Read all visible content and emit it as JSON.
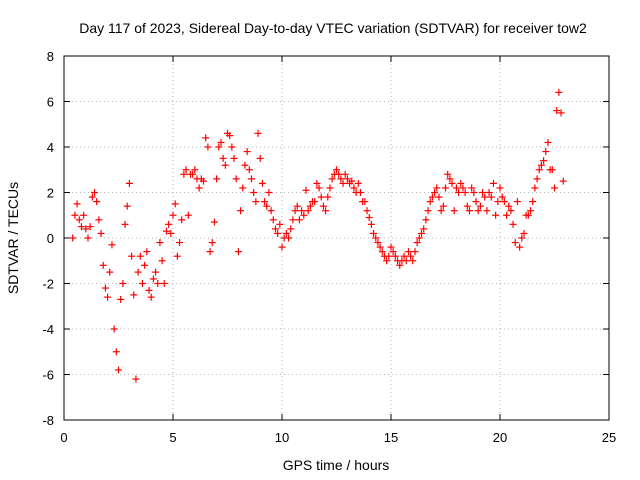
{
  "chart_data": {
    "type": "scatter",
    "title": "Day 117 of 2023, Sidereal Day-to-day VTEC variation (SDTVAR) for receiver tow2",
    "xlabel": "GPS time / hours",
    "ylabel": "SDTVAR / TECUs",
    "xlim": [
      0,
      25
    ],
    "ylim": [
      -8,
      8
    ],
    "xticks": [
      0,
      5,
      10,
      15,
      20,
      25
    ],
    "yticks": [
      -8,
      -6,
      -4,
      -2,
      0,
      2,
      4,
      6,
      8
    ],
    "grid": true,
    "marker": "plus",
    "color": "#ff0000",
    "series": [
      {
        "name": "SDTVAR tow2",
        "points": [
          [
            0.4,
            0.0
          ],
          [
            0.5,
            1.0
          ],
          [
            0.6,
            1.5
          ],
          [
            0.7,
            0.8
          ],
          [
            0.8,
            0.5
          ],
          [
            0.9,
            1.0
          ],
          [
            1.0,
            0.4
          ],
          [
            1.1,
            0.0
          ],
          [
            1.2,
            0.5
          ],
          [
            1.3,
            1.8
          ],
          [
            1.4,
            2.0
          ],
          [
            1.5,
            1.6
          ],
          [
            1.6,
            0.8
          ],
          [
            1.7,
            0.2
          ],
          [
            1.8,
            -1.2
          ],
          [
            1.9,
            -2.2
          ],
          [
            2.0,
            -2.6
          ],
          [
            2.1,
            -1.5
          ],
          [
            2.2,
            -0.3
          ],
          [
            2.3,
            -4.0
          ],
          [
            2.4,
            -5.0
          ],
          [
            2.5,
            -5.8
          ],
          [
            2.6,
            -2.7
          ],
          [
            2.7,
            -2.0
          ],
          [
            2.8,
            0.6
          ],
          [
            2.9,
            1.4
          ],
          [
            3.0,
            2.4
          ],
          [
            3.1,
            -0.8
          ],
          [
            3.2,
            -2.5
          ],
          [
            3.3,
            -6.2
          ],
          [
            3.4,
            -1.5
          ],
          [
            3.5,
            -0.8
          ],
          [
            3.6,
            -2.0
          ],
          [
            3.7,
            -1.2
          ],
          [
            3.8,
            -0.6
          ],
          [
            3.9,
            -2.3
          ],
          [
            4.0,
            -2.6
          ],
          [
            4.1,
            -1.8
          ],
          [
            4.2,
            -1.5
          ],
          [
            4.3,
            -2.0
          ],
          [
            4.4,
            -0.2
          ],
          [
            4.5,
            -1.0
          ],
          [
            4.6,
            -2.0
          ],
          [
            4.7,
            0.3
          ],
          [
            4.8,
            0.6
          ],
          [
            4.9,
            0.2
          ],
          [
            5.0,
            1.0
          ],
          [
            5.1,
            1.5
          ],
          [
            5.2,
            -0.8
          ],
          [
            5.3,
            -0.2
          ],
          [
            5.4,
            0.8
          ],
          [
            5.5,
            2.8
          ],
          [
            5.6,
            3.0
          ],
          [
            5.7,
            1.0
          ],
          [
            5.8,
            2.8
          ],
          [
            5.9,
            2.8
          ],
          [
            6.0,
            3.0
          ],
          [
            6.1,
            2.6
          ],
          [
            6.2,
            2.2
          ],
          [
            6.3,
            2.6
          ],
          [
            6.4,
            2.5
          ],
          [
            6.5,
            4.4
          ],
          [
            6.6,
            4.0
          ],
          [
            6.7,
            -0.6
          ],
          [
            6.8,
            -0.2
          ],
          [
            6.9,
            0.7
          ],
          [
            7.0,
            2.6
          ],
          [
            7.1,
            4.0
          ],
          [
            7.2,
            4.2
          ],
          [
            7.3,
            3.5
          ],
          [
            7.4,
            3.2
          ],
          [
            7.5,
            4.6
          ],
          [
            7.6,
            4.5
          ],
          [
            7.7,
            4.0
          ],
          [
            7.8,
            3.5
          ],
          [
            7.9,
            2.6
          ],
          [
            8.0,
            -0.6
          ],
          [
            8.1,
            1.2
          ],
          [
            8.2,
            2.2
          ],
          [
            8.3,
            3.2
          ],
          [
            8.4,
            3.8
          ],
          [
            8.5,
            3.0
          ],
          [
            8.6,
            2.6
          ],
          [
            8.7,
            2.0
          ],
          [
            8.8,
            1.6
          ],
          [
            8.9,
            4.6
          ],
          [
            9.0,
            3.5
          ],
          [
            9.1,
            2.4
          ],
          [
            9.2,
            1.6
          ],
          [
            9.3,
            1.4
          ],
          [
            9.4,
            2.0
          ],
          [
            9.5,
            1.2
          ],
          [
            9.6,
            0.8
          ],
          [
            9.7,
            0.4
          ],
          [
            9.8,
            0.2
          ],
          [
            9.9,
            0.6
          ],
          [
            10.0,
            -0.4
          ],
          [
            10.1,
            0.0
          ],
          [
            10.2,
            0.2
          ],
          [
            10.3,
            0.0
          ],
          [
            10.4,
            0.4
          ],
          [
            10.5,
            0.8
          ],
          [
            10.6,
            1.2
          ],
          [
            10.7,
            1.4
          ],
          [
            10.8,
            0.8
          ],
          [
            10.9,
            1.2
          ],
          [
            11.0,
            1.0
          ],
          [
            11.1,
            2.1
          ],
          [
            11.2,
            1.2
          ],
          [
            11.3,
            1.4
          ],
          [
            11.4,
            1.6
          ],
          [
            11.5,
            1.6
          ],
          [
            11.6,
            2.4
          ],
          [
            11.7,
            2.2
          ],
          [
            11.8,
            1.8
          ],
          [
            11.9,
            1.4
          ],
          [
            12.0,
            1.2
          ],
          [
            12.1,
            1.8
          ],
          [
            12.2,
            2.2
          ],
          [
            12.3,
            2.6
          ],
          [
            12.4,
            2.8
          ],
          [
            12.5,
            3.0
          ],
          [
            12.6,
            2.8
          ],
          [
            12.7,
            2.6
          ],
          [
            12.8,
            2.4
          ],
          [
            12.9,
            2.8
          ],
          [
            13.0,
            2.6
          ],
          [
            13.1,
            2.4
          ],
          [
            13.2,
            2.5
          ],
          [
            13.3,
            2.2
          ],
          [
            13.4,
            2.0
          ],
          [
            13.5,
            2.4
          ],
          [
            13.6,
            2.0
          ],
          [
            13.7,
            1.6
          ],
          [
            13.8,
            1.6
          ],
          [
            13.9,
            1.2
          ],
          [
            14.0,
            0.9
          ],
          [
            14.1,
            0.6
          ],
          [
            14.2,
            0.2
          ],
          [
            14.3,
            0.0
          ],
          [
            14.4,
            -0.2
          ],
          [
            14.5,
            -0.4
          ],
          [
            14.6,
            -0.6
          ],
          [
            14.7,
            -0.8
          ],
          [
            14.8,
            -1.0
          ],
          [
            14.9,
            -0.8
          ],
          [
            15.0,
            -0.4
          ],
          [
            15.1,
            -0.6
          ],
          [
            15.2,
            -0.8
          ],
          [
            15.3,
            -1.0
          ],
          [
            15.4,
            -1.2
          ],
          [
            15.5,
            -1.0
          ],
          [
            15.6,
            -0.8
          ],
          [
            15.7,
            -1.0
          ],
          [
            15.8,
            -0.6
          ],
          [
            15.9,
            -0.8
          ],
          [
            16.0,
            -1.0
          ],
          [
            16.1,
            -0.6
          ],
          [
            16.2,
            -0.2
          ],
          [
            16.3,
            0.0
          ],
          [
            16.4,
            0.2
          ],
          [
            16.5,
            0.4
          ],
          [
            16.6,
            0.8
          ],
          [
            16.7,
            1.2
          ],
          [
            16.8,
            1.6
          ],
          [
            16.9,
            1.8
          ],
          [
            17.0,
            2.0
          ],
          [
            17.1,
            2.2
          ],
          [
            17.2,
            1.8
          ],
          [
            17.3,
            1.2
          ],
          [
            17.4,
            1.4
          ],
          [
            17.5,
            2.2
          ],
          [
            17.6,
            2.8
          ],
          [
            17.7,
            2.6
          ],
          [
            17.8,
            2.4
          ],
          [
            17.9,
            1.2
          ],
          [
            18.0,
            2.2
          ],
          [
            18.1,
            2.0
          ],
          [
            18.2,
            2.4
          ],
          [
            18.3,
            2.2
          ],
          [
            18.4,
            2.0
          ],
          [
            18.5,
            1.4
          ],
          [
            18.6,
            1.2
          ],
          [
            18.7,
            2.2
          ],
          [
            18.8,
            2.0
          ],
          [
            18.9,
            1.6
          ],
          [
            19.0,
            1.2
          ],
          [
            19.1,
            1.4
          ],
          [
            19.2,
            2.0
          ],
          [
            19.3,
            1.8
          ],
          [
            19.4,
            1.2
          ],
          [
            19.5,
            2.0
          ],
          [
            19.6,
            1.8
          ],
          [
            19.7,
            2.4
          ],
          [
            19.8,
            1.0
          ],
          [
            19.9,
            1.6
          ],
          [
            20.0,
            2.2
          ],
          [
            20.1,
            1.8
          ],
          [
            20.2,
            1.6
          ],
          [
            20.3,
            1.0
          ],
          [
            20.4,
            1.4
          ],
          [
            20.5,
            1.2
          ],
          [
            20.6,
            0.6
          ],
          [
            20.7,
            -0.2
          ],
          [
            20.8,
            1.6
          ],
          [
            20.9,
            -0.4
          ],
          [
            21.0,
            0.0
          ],
          [
            21.1,
            0.2
          ],
          [
            21.2,
            1.0
          ],
          [
            21.3,
            1.0
          ],
          [
            21.4,
            1.2
          ],
          [
            21.5,
            1.6
          ],
          [
            21.6,
            2.2
          ],
          [
            21.7,
            2.6
          ],
          [
            21.8,
            3.0
          ],
          [
            21.9,
            3.2
          ],
          [
            22.0,
            3.4
          ],
          [
            22.1,
            3.8
          ],
          [
            22.2,
            4.2
          ],
          [
            22.3,
            3.0
          ],
          [
            22.4,
            3.0
          ],
          [
            22.5,
            2.2
          ],
          [
            22.6,
            5.6
          ],
          [
            22.7,
            6.4
          ],
          [
            22.8,
            5.5
          ],
          [
            22.9,
            2.5
          ]
        ]
      }
    ]
  }
}
